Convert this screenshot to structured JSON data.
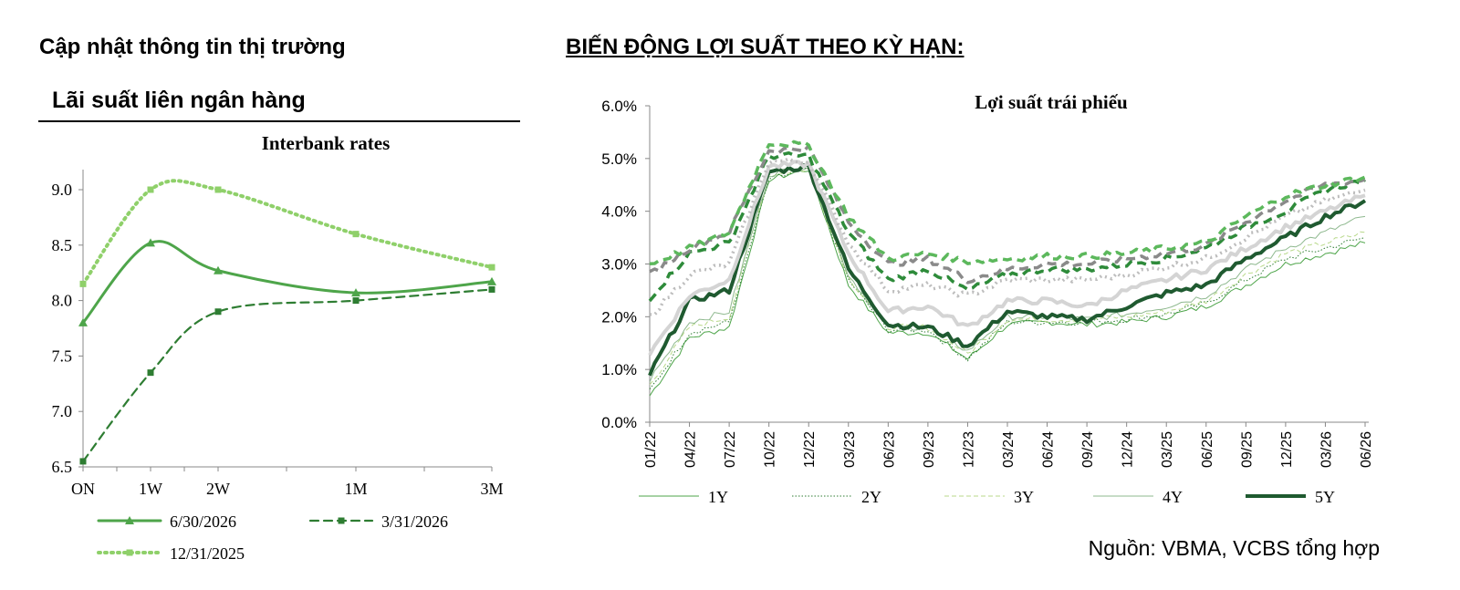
{
  "header": {
    "left_title": "Cập nhật thông tin thị trường",
    "left_subtitle": "Lãi suất liên ngân hàng",
    "right_title": "BIẾN ĐỘNG LỢI SUẤT THEO KỲ HẠN:"
  },
  "source_note": "Nguồn: VBMA, VCBS tổng hợp",
  "colors": {
    "green_mid": "#4ea54a",
    "green_dark": "#2e7d32",
    "green_light": "#8fd06a",
    "green_darkest": "#1f5a30",
    "grey": "#8a8a8a",
    "light_grey": "#d4d4d4"
  },
  "chart_data": [
    {
      "type": "line",
      "title": "Interbank rates",
      "categories": [
        "ON",
        "1W",
        "2W",
        "1M",
        "3M"
      ],
      "ylim": [
        6.5,
        9.0
      ],
      "yticks": [
        "9.0",
        "8.5",
        "8.0",
        "7.5",
        "7.0",
        "6.5"
      ],
      "grid": false,
      "legend_position": "bottom",
      "series": [
        {
          "name": "6/30/2026",
          "values": [
            7.8,
            8.52,
            8.27,
            8.07,
            8.17
          ],
          "style": "solid",
          "marker": "triangle",
          "color": "#4ea54a"
        },
        {
          "name": "3/31/2026",
          "values": [
            6.55,
            7.35,
            7.9,
            8.0,
            8.1
          ],
          "style": "dashed",
          "marker": "square",
          "color": "#2e7d32"
        },
        {
          "name": "12/31/2025",
          "values": [
            8.15,
            9.0,
            9.0,
            8.6,
            8.3
          ],
          "style": "dotted",
          "marker": "square",
          "color": "#8fd06a"
        }
      ]
    },
    {
      "type": "line",
      "title": "Lợi suất trái phiếu",
      "x_labels": [
        "01/22",
        "04/22",
        "07/22",
        "10/22",
        "12/22",
        "03/23",
        "06/23",
        "09/23",
        "12/23",
        "03/24",
        "06/24",
        "09/24",
        "12/24",
        "03/25",
        "06/25",
        "09/25",
        "12/25",
        "03/26",
        "06/26"
      ],
      "ylim": [
        0.0,
        6.0
      ],
      "yticks": [
        "6.0%",
        "5.0%",
        "4.0%",
        "3.0%",
        "2.0%",
        "1.0%",
        "0.0%"
      ],
      "grid": false,
      "legend_position": "bottom",
      "series": [
        {
          "name": "1Y",
          "style": "thin-solid",
          "color": "#4ea54a",
          "values": [
            0.5,
            1.6,
            1.8,
            4.6,
            4.8,
            2.6,
            1.7,
            1.7,
            1.2,
            1.85,
            1.9,
            1.85,
            1.9,
            2.0,
            2.2,
            2.6,
            3.0,
            3.2,
            3.4
          ]
        },
        {
          "name": "2Y",
          "style": "thin-dotted",
          "color": "#2e7d32",
          "values": [
            0.6,
            1.7,
            1.9,
            4.6,
            4.8,
            2.7,
            1.75,
            1.75,
            1.2,
            1.9,
            1.9,
            1.9,
            1.95,
            2.05,
            2.25,
            2.7,
            3.1,
            3.3,
            3.5
          ]
        },
        {
          "name": "3Y",
          "style": "thin-dashed",
          "color": "#b8d98a",
          "values": [
            0.7,
            1.8,
            2.0,
            4.7,
            4.8,
            2.75,
            1.8,
            1.8,
            1.3,
            1.95,
            1.95,
            1.95,
            2.0,
            2.1,
            2.3,
            2.8,
            3.2,
            3.4,
            3.6
          ]
        },
        {
          "name": "4Y",
          "style": "thin-solid",
          "color": "#8fb98f",
          "values": [
            0.8,
            1.9,
            2.1,
            4.7,
            4.85,
            2.8,
            1.8,
            1.8,
            1.35,
            2.0,
            2.0,
            1.95,
            2.05,
            2.2,
            2.4,
            2.9,
            3.3,
            3.6,
            3.9
          ]
        },
        {
          "name": "5Y",
          "style": "thick-solid",
          "color": "#1f5a30",
          "values": [
            0.9,
            2.3,
            2.5,
            4.75,
            4.85,
            2.9,
            1.85,
            1.8,
            1.45,
            2.1,
            2.0,
            1.95,
            2.2,
            2.45,
            2.6,
            3.1,
            3.5,
            3.9,
            4.2
          ]
        },
        {
          "style": "thick-solid",
          "color": "#d4d4d4",
          "values": [
            1.3,
            2.4,
            2.7,
            4.85,
            4.9,
            3.2,
            2.1,
            2.2,
            1.8,
            2.3,
            2.3,
            2.2,
            2.5,
            2.7,
            2.9,
            3.3,
            3.7,
            4.0,
            4.3
          ]
        },
        {
          "style": "thick-dotted",
          "color": "#bdbdbd",
          "values": [
            2.0,
            2.8,
            3.0,
            4.95,
            4.95,
            3.4,
            2.5,
            2.6,
            2.4,
            2.7,
            2.7,
            2.7,
            2.8,
            2.95,
            3.1,
            3.5,
            3.9,
            4.2,
            4.4
          ]
        },
        {
          "style": "thick-dashed",
          "color": "#2e8b3a",
          "values": [
            2.35,
            3.2,
            3.4,
            5.05,
            5.05,
            3.6,
            2.7,
            2.9,
            2.5,
            2.8,
            2.9,
            2.9,
            3.0,
            3.1,
            3.3,
            3.7,
            4.0,
            4.4,
            4.6
          ]
        },
        {
          "style": "thick-dashed",
          "color": "#8a8a8a",
          "values": [
            2.8,
            3.3,
            3.6,
            5.15,
            5.2,
            3.8,
            3.0,
            3.1,
            2.7,
            2.9,
            3.0,
            3.0,
            3.1,
            3.2,
            3.35,
            3.8,
            4.2,
            4.5,
            4.6
          ]
        },
        {
          "style": "thick-dashed",
          "color": "#5cb85c",
          "values": [
            3.0,
            3.3,
            3.6,
            5.3,
            5.25,
            3.9,
            3.1,
            3.2,
            3.05,
            3.1,
            3.15,
            3.15,
            3.2,
            3.3,
            3.4,
            3.9,
            4.3,
            4.5,
            4.65
          ]
        }
      ]
    }
  ]
}
